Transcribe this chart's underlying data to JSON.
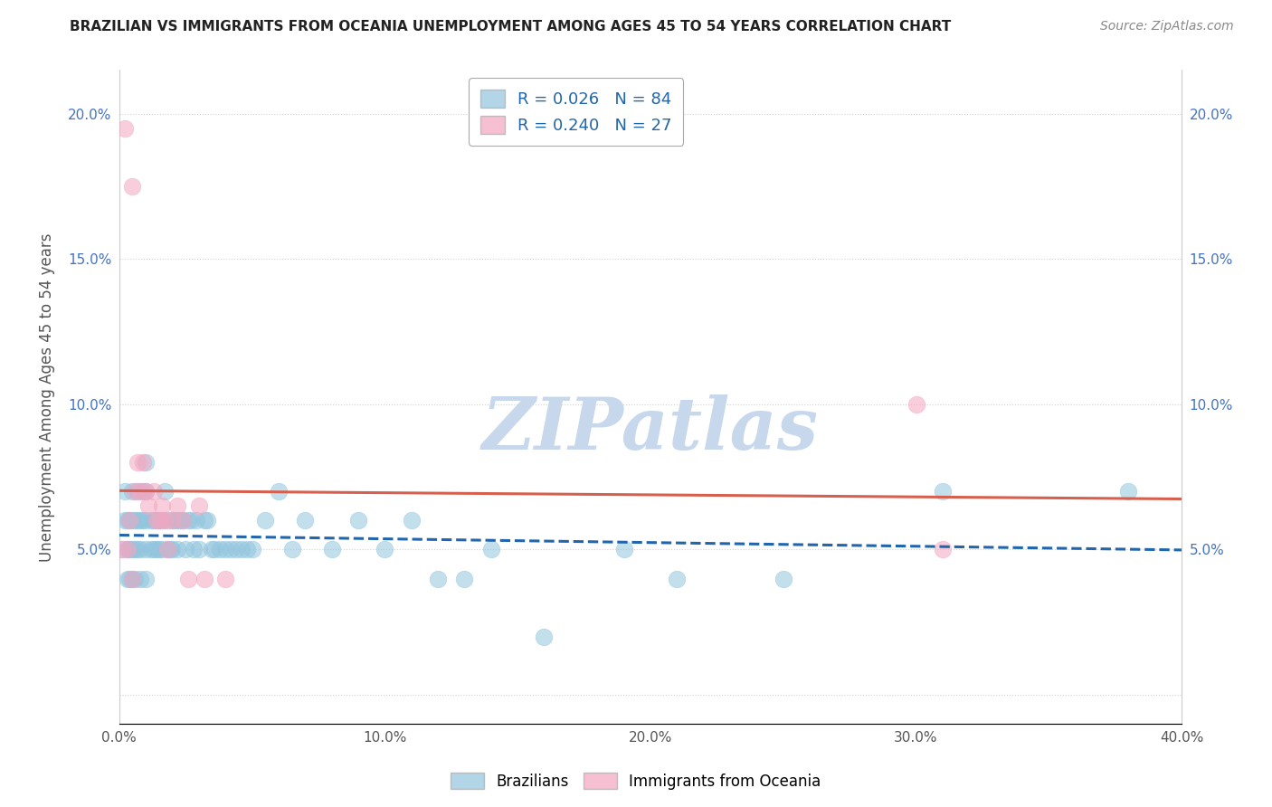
{
  "title": "BRAZILIAN VS IMMIGRANTS FROM OCEANIA UNEMPLOYMENT AMONG AGES 45 TO 54 YEARS CORRELATION CHART",
  "source": "Source: ZipAtlas.com",
  "ylabel": "Unemployment Among Ages 45 to 54 years",
  "xlim": [
    0.0,
    0.4
  ],
  "ylim": [
    -0.01,
    0.215
  ],
  "yticks": [
    0.0,
    0.05,
    0.1,
    0.15,
    0.2
  ],
  "ytick_labels": [
    "",
    "5.0%",
    "10.0%",
    "15.0%",
    "20.0%"
  ],
  "xticks": [
    0.0,
    0.05,
    0.1,
    0.15,
    0.2,
    0.25,
    0.3,
    0.35,
    0.4
  ],
  "xtick_labels": [
    "0.0%",
    "",
    "10.0%",
    "",
    "20.0%",
    "",
    "30.0%",
    "",
    "40.0%"
  ],
  "legend_label1": "R = 0.026   N = 84",
  "legend_label2": "R = 0.240   N = 27",
  "blue_color": "#92C5DE",
  "pink_color": "#F4A6C0",
  "blue_line_color": "#2166AC",
  "pink_line_color": "#D6604D",
  "watermark": "ZIPatlas",
  "watermark_color": "#C8D8EC",
  "background_color": "#FFFFFF",
  "grid_color": "#CCCCCC",
  "blue_x": [
    0.001,
    0.002,
    0.002,
    0.003,
    0.003,
    0.003,
    0.004,
    0.004,
    0.004,
    0.005,
    0.005,
    0.005,
    0.005,
    0.006,
    0.006,
    0.006,
    0.007,
    0.007,
    0.007,
    0.008,
    0.008,
    0.008,
    0.009,
    0.009,
    0.01,
    0.01,
    0.01,
    0.01,
    0.01,
    0.012,
    0.012,
    0.013,
    0.013,
    0.014,
    0.014,
    0.015,
    0.015,
    0.016,
    0.016,
    0.017,
    0.018,
    0.018,
    0.019,
    0.02,
    0.02,
    0.021,
    0.022,
    0.022,
    0.023,
    0.024,
    0.025,
    0.026,
    0.027,
    0.028,
    0.029,
    0.03,
    0.032,
    0.033,
    0.035,
    0.036,
    0.038,
    0.04,
    0.042,
    0.044,
    0.046,
    0.048,
    0.05,
    0.055,
    0.06,
    0.065,
    0.07,
    0.08,
    0.09,
    0.1,
    0.11,
    0.12,
    0.13,
    0.14,
    0.16,
    0.19,
    0.21,
    0.25,
    0.31,
    0.38
  ],
  "blue_y": [
    0.05,
    0.06,
    0.07,
    0.04,
    0.05,
    0.06,
    0.04,
    0.05,
    0.06,
    0.04,
    0.05,
    0.06,
    0.07,
    0.04,
    0.05,
    0.06,
    0.05,
    0.06,
    0.07,
    0.04,
    0.05,
    0.06,
    0.06,
    0.07,
    0.04,
    0.05,
    0.06,
    0.07,
    0.08,
    0.05,
    0.06,
    0.05,
    0.06,
    0.05,
    0.06,
    0.05,
    0.06,
    0.05,
    0.06,
    0.07,
    0.05,
    0.06,
    0.05,
    0.05,
    0.06,
    0.06,
    0.05,
    0.06,
    0.06,
    0.06,
    0.05,
    0.06,
    0.06,
    0.05,
    0.06,
    0.05,
    0.06,
    0.06,
    0.05,
    0.05,
    0.05,
    0.05,
    0.05,
    0.05,
    0.05,
    0.05,
    0.05,
    0.06,
    0.07,
    0.05,
    0.06,
    0.05,
    0.06,
    0.05,
    0.06,
    0.04,
    0.04,
    0.05,
    0.02,
    0.05,
    0.04,
    0.04,
    0.07,
    0.07
  ],
  "pink_x": [
    0.001,
    0.002,
    0.003,
    0.004,
    0.005,
    0.005,
    0.006,
    0.007,
    0.008,
    0.009,
    0.01,
    0.011,
    0.013,
    0.014,
    0.015,
    0.016,
    0.017,
    0.018,
    0.02,
    0.022,
    0.024,
    0.026,
    0.03,
    0.032,
    0.04,
    0.3,
    0.31
  ],
  "pink_y": [
    0.05,
    0.195,
    0.05,
    0.06,
    0.04,
    0.175,
    0.07,
    0.08,
    0.07,
    0.08,
    0.07,
    0.065,
    0.07,
    0.06,
    0.06,
    0.065,
    0.06,
    0.05,
    0.06,
    0.065,
    0.06,
    0.04,
    0.065,
    0.04,
    0.04,
    0.1,
    0.05
  ]
}
